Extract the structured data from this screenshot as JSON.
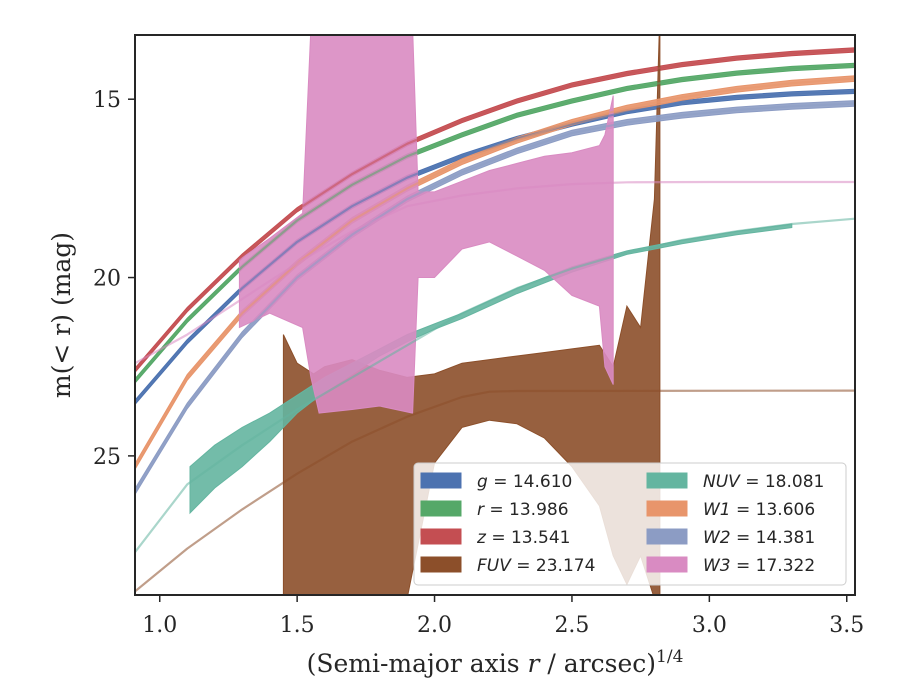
{
  "chart_data": {
    "type": "line",
    "xlabel_prefix": "(Semi-major axis ",
    "xlabel_var": "r",
    "xlabel_mid": " / arcsec)",
    "xlabel_sup": "1/4",
    "ylabel": "m(< r) (mag)",
    "xlim": [
      0.91,
      3.53
    ],
    "ylim": [
      28.9,
      13.2
    ],
    "y_inverted": true,
    "x_ticks": [
      1.0,
      1.5,
      2.0,
      2.5,
      3.0,
      3.5
    ],
    "x_tick_labels": [
      "1.0",
      "1.5",
      "2.0",
      "2.5",
      "3.0",
      "3.5"
    ],
    "y_ticks": [
      15,
      20,
      25
    ],
    "y_tick_labels": [
      "15",
      "20",
      "25"
    ],
    "grid": false,
    "legend_position": "lower-right",
    "series": [
      {
        "name": "g = 14.610",
        "var": "g",
        "val": "14.610",
        "color": "#4c72b0",
        "x": [
          0.91,
          1.1,
          1.3,
          1.5,
          1.7,
          1.9,
          2.1,
          2.3,
          2.5,
          2.7,
          2.9,
          3.1,
          3.3,
          3.53
        ],
        "y": [
          23.5,
          21.8,
          20.3,
          19.0,
          18.0,
          17.2,
          16.6,
          16.1,
          15.7,
          15.35,
          15.1,
          14.95,
          14.85,
          14.78
        ],
        "halfwidth": 0.06
      },
      {
        "name": "r = 13.986",
        "var": "r",
        "val": "13.986",
        "color": "#55a868",
        "x": [
          0.91,
          1.1,
          1.3,
          1.5,
          1.7,
          1.9,
          2.1,
          2.3,
          2.5,
          2.7,
          2.9,
          3.1,
          3.3,
          3.53
        ],
        "y": [
          22.9,
          21.2,
          19.7,
          18.4,
          17.4,
          16.6,
          16.0,
          15.45,
          15.05,
          14.7,
          14.45,
          14.27,
          14.14,
          14.05
        ],
        "halfwidth": 0.06
      },
      {
        "name": "z = 13.541",
        "var": "z",
        "val": "13.541",
        "color": "#c44e52",
        "x": [
          0.91,
          1.1,
          1.3,
          1.5,
          1.7,
          1.9,
          2.1,
          2.3,
          2.5,
          2.7,
          2.9,
          3.1,
          3.3,
          3.53
        ],
        "y": [
          22.6,
          20.9,
          19.4,
          18.1,
          17.1,
          16.25,
          15.6,
          15.05,
          14.6,
          14.28,
          14.03,
          13.85,
          13.72,
          13.62
        ],
        "halfwidth": 0.06
      },
      {
        "name": "FUV = 23.174",
        "var": "FUV",
        "val": "23.174",
        "color": "#8c4f2a",
        "x": [
          0.91,
          1.1,
          1.3,
          1.5,
          1.7,
          1.9,
          2.1,
          2.2,
          2.3,
          3.53
        ],
        "y": [
          28.8,
          27.6,
          26.5,
          25.5,
          24.6,
          23.9,
          23.35,
          23.2,
          23.18,
          23.17
        ],
        "band_x": [
          1.45,
          1.5,
          1.56,
          1.6,
          1.7,
          1.8,
          1.9,
          2.0,
          2.1,
          2.2,
          2.3,
          2.4,
          2.5,
          2.6,
          2.65,
          2.7,
          2.75,
          2.8,
          2.82
        ],
        "band_upper": [
          21.6,
          22.4,
          22.7,
          22.5,
          22.3,
          22.6,
          22.8,
          22.7,
          22.4,
          22.3,
          22.2,
          22.1,
          22.0,
          21.9,
          22.5,
          20.8,
          21.4,
          17.8,
          12.5
        ],
        "band_lower": [
          29.0,
          29.0,
          29.0,
          29.0,
          29.0,
          29.0,
          29.0,
          25.2,
          24.2,
          24.0,
          24.1,
          24.5,
          25.3,
          26.4,
          27.8,
          28.6,
          27.8,
          29.0,
          29.0
        ]
      },
      {
        "name": "NUV = 18.081",
        "var": "NUV",
        "val": "18.081",
        "color": "#64b5a0",
        "x": [
          0.91,
          1.1,
          1.3,
          1.5,
          1.7,
          1.9,
          2.1,
          2.3,
          2.5,
          2.7,
          2.9,
          3.1,
          3.3,
          3.53
        ],
        "y": [
          27.7,
          25.8,
          24.7,
          23.7,
          22.8,
          21.9,
          21.0,
          20.3,
          19.75,
          19.3,
          18.95,
          18.7,
          18.5,
          18.35
        ],
        "band_x": [
          1.11,
          1.2,
          1.3,
          1.4,
          1.5,
          1.6,
          1.7,
          1.8,
          1.9,
          2.0,
          2.1,
          2.3,
          2.5,
          2.7,
          2.9,
          3.1,
          3.3
        ],
        "band_upper": [
          25.3,
          24.7,
          24.2,
          23.8,
          23.3,
          22.8,
          22.4,
          22.0,
          21.6,
          21.3,
          21.0,
          20.3,
          19.7,
          19.25,
          18.95,
          18.7,
          18.5
        ],
        "band_lower": [
          26.6,
          25.9,
          25.3,
          24.6,
          23.8,
          23.2,
          22.7,
          22.2,
          21.8,
          21.45,
          21.15,
          20.45,
          19.85,
          19.35,
          19.05,
          18.8,
          18.6
        ]
      },
      {
        "name": "W1 = 13.606",
        "var": "W1",
        "val": "13.606",
        "color": "#e8956b",
        "x": [
          0.91,
          1.1,
          1.3,
          1.5,
          1.7,
          1.9,
          2.1,
          2.3,
          2.5,
          2.7,
          2.9,
          3.1,
          3.3,
          3.53
        ],
        "y": [
          25.3,
          22.8,
          21.0,
          19.6,
          18.4,
          17.5,
          16.75,
          16.15,
          15.65,
          15.25,
          14.95,
          14.72,
          14.55,
          14.42
        ],
        "halfwidth": 0.08
      },
      {
        "name": "W2 = 14.381",
        "var": "W2",
        "val": "14.381",
        "color": "#8c9cc4",
        "x": [
          0.91,
          1.1,
          1.3,
          1.5,
          1.7,
          1.9,
          2.1,
          2.3,
          2.5,
          2.7,
          2.9,
          3.1,
          3.3,
          3.53
        ],
        "y": [
          26.0,
          23.6,
          21.6,
          20.0,
          18.8,
          17.8,
          17.05,
          16.45,
          15.95,
          15.65,
          15.45,
          15.3,
          15.2,
          15.12
        ],
        "halfwidth": 0.08
      },
      {
        "name": "W3 = 17.322",
        "var": "W3",
        "val": "17.322",
        "color": "#d98bc2",
        "x": [
          0.91,
          1.1,
          1.3,
          1.5,
          1.7,
          1.9,
          2.1,
          2.3,
          2.5,
          2.7,
          3.0,
          3.53
        ],
        "y": [
          22.4,
          21.6,
          20.6,
          19.6,
          18.7,
          18.0,
          17.7,
          17.5,
          17.38,
          17.33,
          17.32,
          17.32
        ],
        "band_x": [
          1.29,
          1.4,
          1.52,
          1.55,
          1.58,
          1.7,
          1.8,
          1.92,
          1.94,
          2.0,
          2.1,
          2.2,
          2.3,
          2.4,
          2.5,
          2.6,
          2.62,
          2.65
        ],
        "band_upper": [
          19.5,
          18.9,
          18.2,
          13.0,
          13.0,
          13.0,
          13.0,
          13.0,
          17.6,
          17.6,
          17.3,
          17.0,
          16.8,
          16.6,
          16.5,
          16.3,
          16.0,
          14.9
        ],
        "band_lower": [
          21.4,
          21.0,
          21.4,
          22.8,
          23.8,
          23.7,
          23.6,
          23.8,
          20.0,
          20.0,
          19.2,
          19.0,
          19.4,
          19.8,
          20.5,
          20.8,
          22.5,
          23.0
        ]
      }
    ]
  }
}
